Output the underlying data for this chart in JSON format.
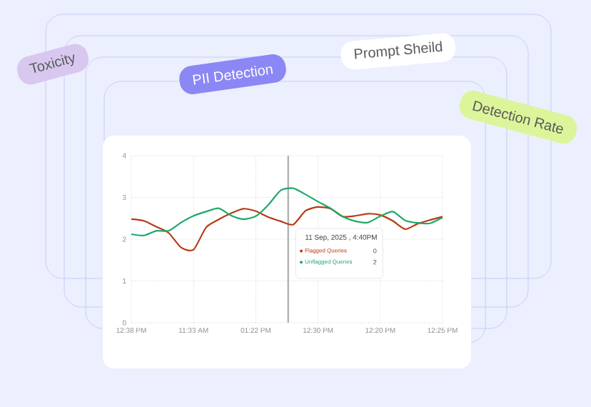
{
  "chart_data": {
    "type": "line",
    "categories": [
      "12:38 PM",
      null,
      null,
      null,
      null,
      "11:33 AM",
      null,
      null,
      null,
      null,
      "01:22 PM",
      null,
      null,
      null,
      null,
      "12:30 PM",
      null,
      null,
      null,
      null,
      "12:20 PM",
      null,
      null,
      null,
      null,
      "12:25 PM"
    ],
    "ylim": [
      0,
      4
    ],
    "yticks": [
      0,
      1,
      2,
      3,
      4
    ],
    "grid": true,
    "line_style": "solid",
    "series": [
      {
        "name": "Flagged Queries",
        "color": "#b83a14",
        "values": [
          2.48,
          2.44,
          2.3,
          2.15,
          1.8,
          1.75,
          2.28,
          2.47,
          2.62,
          2.73,
          2.67,
          2.53,
          2.43,
          2.35,
          2.68,
          2.77,
          2.73,
          2.54,
          2.56,
          2.61,
          2.58,
          2.44,
          2.24,
          2.37,
          2.46,
          2.54
        ]
      },
      {
        "name": "Unflagged Queries",
        "color": "#1fa86a",
        "values": [
          2.12,
          2.09,
          2.2,
          2.2,
          2.4,
          2.56,
          2.66,
          2.74,
          2.57,
          2.48,
          2.55,
          2.82,
          3.17,
          3.22,
          3.07,
          2.9,
          2.74,
          2.54,
          2.43,
          2.4,
          2.55,
          2.66,
          2.45,
          2.39,
          2.38,
          2.52
        ]
      }
    ],
    "legend": "center",
    "annotations": [
      "Toxicity",
      "PII Detection",
      "Prompt Sheild",
      "Detection Rate",
      "11 Sep, 2025 , 4:40PM",
      "0",
      "2"
    ]
  }
}
